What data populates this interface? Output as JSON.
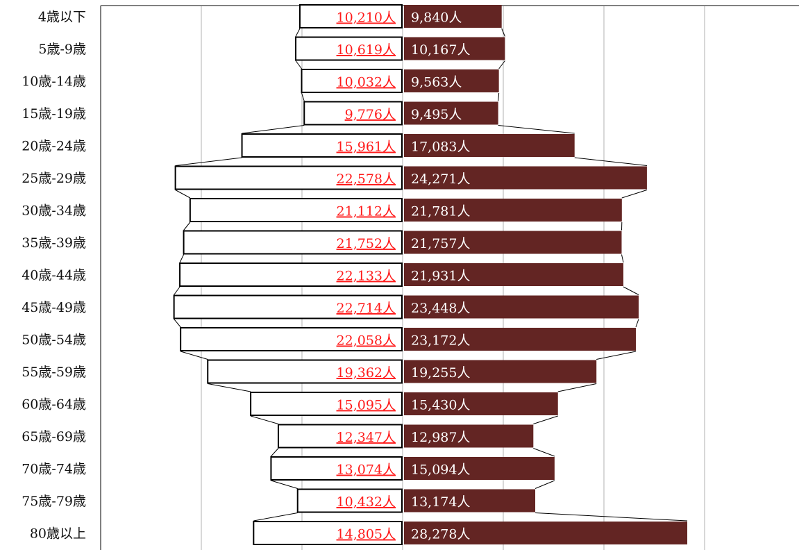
{
  "chart_data": {
    "type": "bar",
    "categories": [
      "4歳以下",
      "5歳-9歳",
      "10歳-14歳",
      "15歳-19歳",
      "20歳-24歳",
      "25歳-29歳",
      "30歳-34歳",
      "35歳-39歳",
      "40歳-44歳",
      "45歳-49歳",
      "50歳-54歳",
      "55歳-59歳",
      "60歳-64歳",
      "65歳-69歳",
      "70歳-74歳",
      "75歳-79歳",
      "80歳以上"
    ],
    "series": [
      {
        "values": [
          10210,
          10619,
          10032,
          9776,
          15961,
          22578,
          21112,
          21752,
          22133,
          22714,
          22058,
          19362,
          15095,
          12347,
          13074,
          10432,
          14805
        ],
        "labels": [
          "10,210人",
          "10,619人",
          "10,032人",
          "9,776人",
          "15,961人",
          "22,578人",
          "21,112人",
          "21,752人",
          "22,133人",
          "22,714人",
          "22,058人",
          "19,362人",
          "15,095人",
          "12,347人",
          "13,074人",
          "10,432人",
          "14,805人"
        ],
        "color": "#ffffff",
        "border": "#000000",
        "label_color": "#ff1a1a",
        "side": "left"
      },
      {
        "values": [
          9840,
          10167,
          9563,
          9495,
          17083,
          24271,
          21781,
          21757,
          21931,
          23448,
          23172,
          19255,
          15430,
          12987,
          15094,
          13174,
          28278
        ],
        "labels": [
          "9,840人",
          "10,167人",
          "9,563人",
          "9,495人",
          "17,083人",
          "24,271人",
          "21,781人",
          "21,757人",
          "21,931人",
          "23,448人",
          "23,172人",
          "19,255人",
          "15,430人",
          "12,987人",
          "15,094人",
          "13,174人",
          "28,278人"
        ],
        "color": "#632523",
        "label_color": "#ffffff",
        "side": "right"
      }
    ],
    "xlim": [
      -30000,
      40000
    ],
    "grid": true,
    "orientation": "horizontal-population-pyramid"
  }
}
